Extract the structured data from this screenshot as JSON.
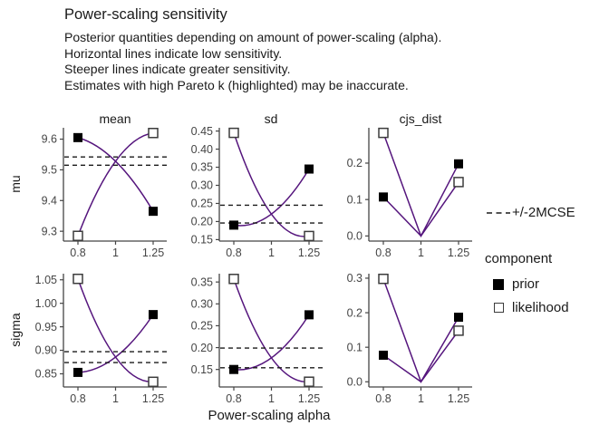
{
  "chart_data": {
    "type": "line",
    "title": "Power-scaling sensitivity",
    "subtitle_lines": [
      "Posterior quantities depending on amount of power-scaling (alpha).",
      "Horizontal lines indicate low sensitivity.",
      "Steeper lines indicate greater sensitivity.",
      "Estimates with high Pareto k (highlighted) may be inaccurate."
    ],
    "xlabel": "Power-scaling alpha",
    "x": [
      0.8,
      1,
      1.25
    ],
    "x_tick_labels": [
      "0.8",
      "1",
      "1.25"
    ],
    "x_scale": "log",
    "grid": false,
    "legend_position": "right",
    "facet_cols": [
      "mean",
      "sd",
      "cjs_dist"
    ],
    "facet_rows": [
      "mu",
      "sigma"
    ],
    "legend": {
      "mcse_label": "+/-2MCSE",
      "component_title": "component",
      "items": [
        {
          "label": "prior",
          "marker": "filled-square"
        },
        {
          "label": "likelihood",
          "marker": "open-square"
        }
      ]
    },
    "colors": {
      "line": "#55157d",
      "prior_marker": "#000000",
      "likelihood_marker_fill": "#ffffff",
      "marker_stroke": "#3c3c3c",
      "mcse_line": "#1a1a1a",
      "axis": "#454545"
    },
    "panels": [
      {
        "row": "mu",
        "col": "mean",
        "curve": "quad",
        "ylim": [
          9.268,
          9.637
        ],
        "yticks": [
          {
            "label": "9.3",
            "v": 9.3
          },
          {
            "label": "9.4",
            "v": 9.4
          },
          {
            "label": "9.5",
            "v": 9.5
          },
          {
            "label": "9.6",
            "v": 9.6
          }
        ],
        "mcse": [
          9.515,
          9.542
        ],
        "prior": [
          9.605,
          9.528,
          9.365
        ],
        "likelihood": [
          9.285,
          9.528,
          9.62
        ]
      },
      {
        "row": "mu",
        "col": "sd",
        "curve": "quad",
        "ylim": [
          0.146,
          0.459
        ],
        "yticks": [
          {
            "label": "0.15",
            "v": 0.15
          },
          {
            "label": "0.20",
            "v": 0.2
          },
          {
            "label": "0.25",
            "v": 0.25
          },
          {
            "label": "0.30",
            "v": 0.3
          },
          {
            "label": "0.35",
            "v": 0.35
          },
          {
            "label": "0.40",
            "v": 0.4
          },
          {
            "label": "0.45",
            "v": 0.45
          }
        ],
        "mcse": [
          0.196,
          0.245
        ],
        "prior": [
          0.19,
          0.2205,
          0.345
        ],
        "likelihood": [
          0.445,
          0.2205,
          0.16
        ]
      },
      {
        "row": "mu",
        "col": "cjs_dist",
        "curve": "linear",
        "ylim": [
          -0.014,
          0.297
        ],
        "yticks": [
          {
            "label": "0.0",
            "v": 0.0
          },
          {
            "label": "0.1",
            "v": 0.1
          },
          {
            "label": "0.2",
            "v": 0.2
          }
        ],
        "mcse": null,
        "prior": [
          0.107,
          0,
          0.198
        ],
        "likelihood": [
          0.283,
          0,
          0.148
        ]
      },
      {
        "row": "sigma",
        "col": "mean",
        "curve": "quad",
        "ylim": [
          0.822,
          1.063
        ],
        "yticks": [
          {
            "label": "0.85",
            "v": 0.85
          },
          {
            "label": "0.90",
            "v": 0.9
          },
          {
            "label": "0.95",
            "v": 0.95
          },
          {
            "label": "1.00",
            "v": 1.0
          },
          {
            "label": "1.05",
            "v": 1.05
          }
        ],
        "mcse": [
          0.874,
          0.897
        ],
        "prior": [
          0.853,
          0.8855,
          0.976
        ],
        "likelihood": [
          1.052,
          0.8855,
          0.833
        ]
      },
      {
        "row": "sigma",
        "col": "sd",
        "curve": "quad",
        "ylim": [
          0.11,
          0.369
        ],
        "yticks": [
          {
            "label": "0.15",
            "v": 0.15
          },
          {
            "label": "0.20",
            "v": 0.2
          },
          {
            "label": "0.25",
            "v": 0.25
          },
          {
            "label": "0.30",
            "v": 0.3
          },
          {
            "label": "0.35",
            "v": 0.35
          }
        ],
        "mcse": [
          0.154,
          0.199
        ],
        "prior": [
          0.15,
          0.1765,
          0.275
        ],
        "likelihood": [
          0.357,
          0.1765,
          0.122
        ]
      },
      {
        "row": "sigma",
        "col": "cjs_dist",
        "curve": "linear",
        "ylim": [
          -0.015,
          0.313
        ],
        "yticks": [
          {
            "label": "0.0",
            "v": 0.0
          },
          {
            "label": "0.1",
            "v": 0.1
          },
          {
            "label": "0.2",
            "v": 0.2
          },
          {
            "label": "0.3",
            "v": 0.3
          }
        ],
        "mcse": null,
        "prior": [
          0.077,
          0,
          0.187
        ],
        "likelihood": [
          0.298,
          0,
          0.148
        ]
      }
    ]
  }
}
